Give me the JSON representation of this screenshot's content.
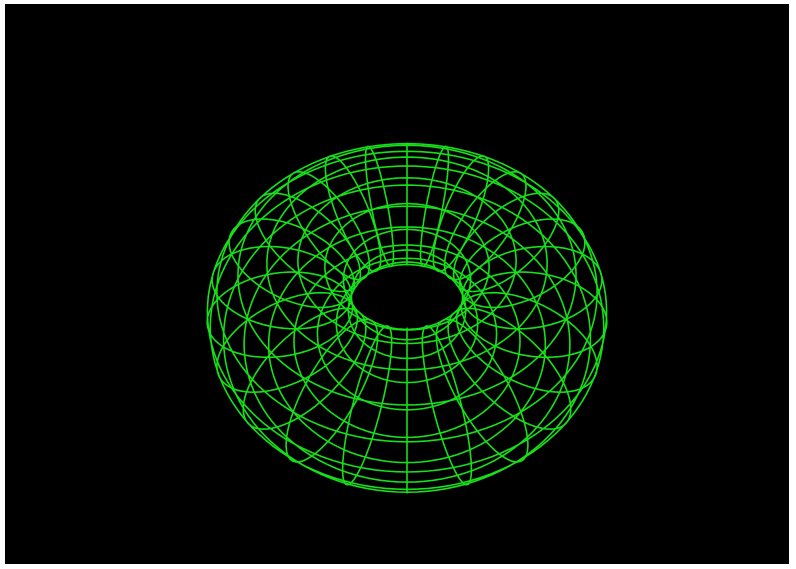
{
  "scene": {
    "subject": "torus wireframe",
    "background_color": "#000000",
    "line_color": "#17e01a",
    "frame_color": "#ffffff",
    "major_segments": 24,
    "minor_segments": 16,
    "projection": "perspective"
  }
}
